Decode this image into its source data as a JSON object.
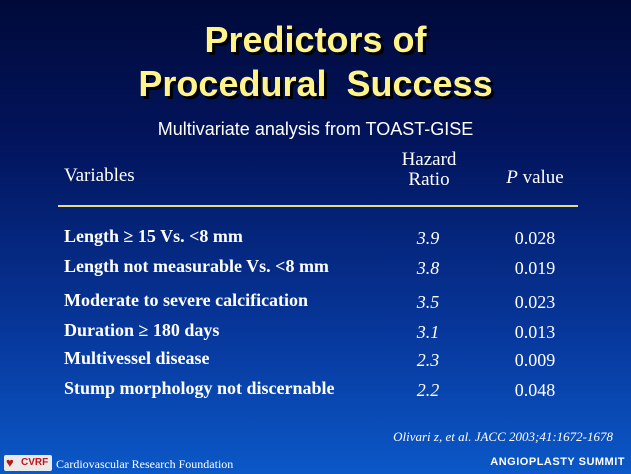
{
  "slide": {
    "title_line1": "Predictors of",
    "title_line2": "Procedural  Success",
    "subtitle": "Multivariate analysis from TOAST-GISE"
  },
  "table": {
    "headers": {
      "variables": "Variables",
      "hazard_line1": "Hazard",
      "hazard_line2": "Ratio",
      "p_italic": "P",
      "p_rest": " value"
    },
    "rows": [
      {
        "variable": "Length ≥ 15 Vs. <8 mm",
        "hazard_ratio": "3.9",
        "p_value": "0.028"
      },
      {
        "variable": "Length not measurable Vs. <8 mm",
        "hazard_ratio": "3.8",
        "p_value": "0.019"
      },
      {
        "variable": "Moderate to severe calcification",
        "hazard_ratio": "3.5",
        "p_value": "0.023"
      },
      {
        "variable": "Duration ≥ 180 days",
        "hazard_ratio": "3.1",
        "p_value": "0.013"
      },
      {
        "variable": "Multivessel disease",
        "hazard_ratio": "2.3",
        "p_value": "0.009"
      },
      {
        "variable": "Stump morphology not discernable",
        "hazard_ratio": "2.2",
        "p_value": "0.048"
      }
    ]
  },
  "citation": "Olivari z, et al. JACC 2003;41:1672-1678",
  "footer": {
    "logo_text": "CVRF",
    "foundation": "Cardiovascular Research Foundation",
    "summit": "ANGIOPLASTY SUMMIT"
  },
  "colors": {
    "title": "#fff38a",
    "rule": "#e8d88a",
    "logo_red": "#c0141b"
  },
  "icons": {
    "logo": "heart-icon"
  }
}
